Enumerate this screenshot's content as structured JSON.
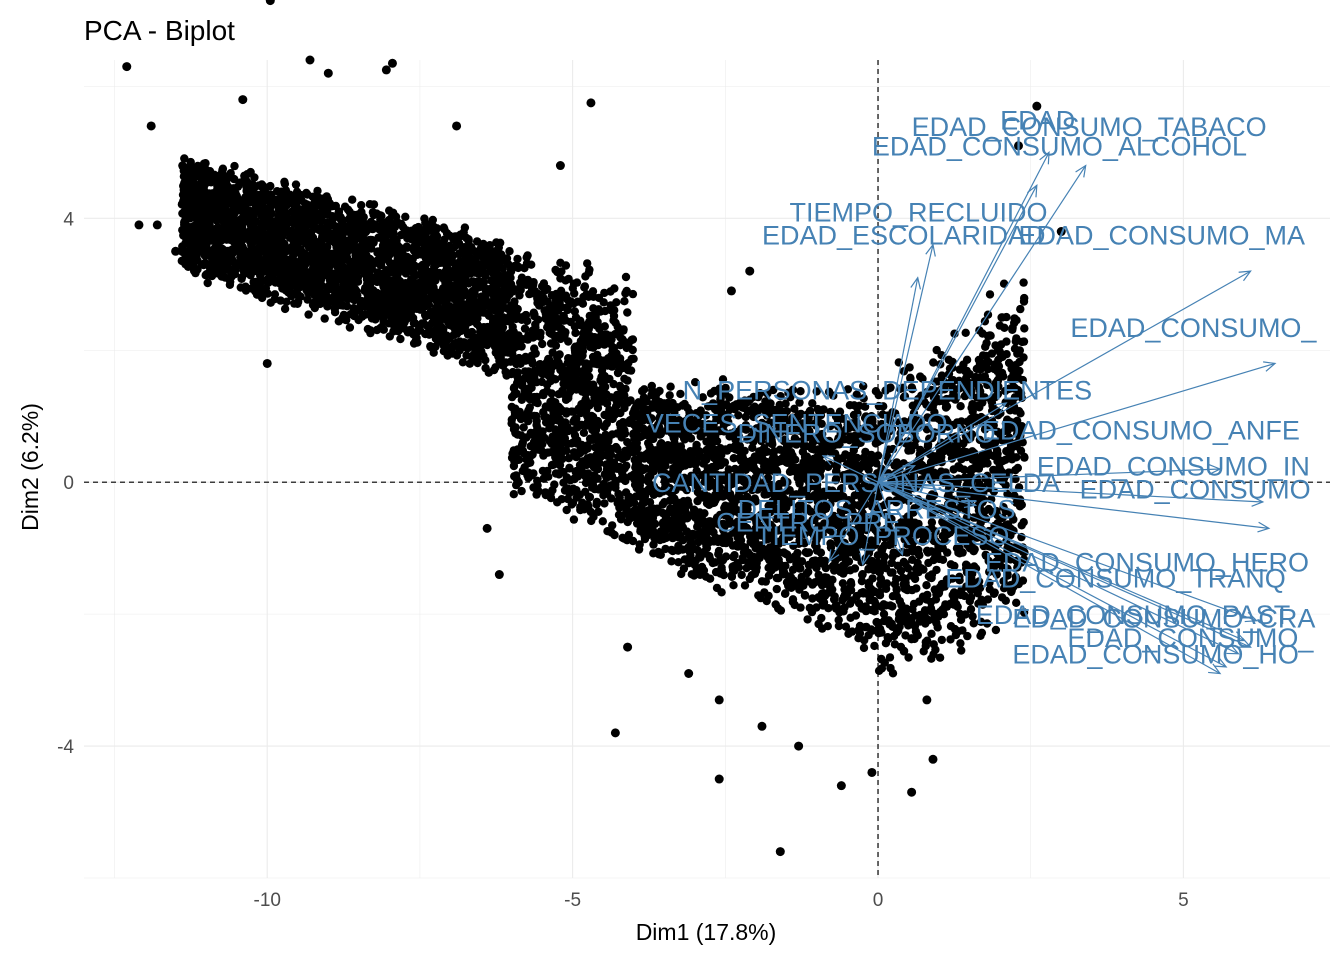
{
  "chart_data": {
    "type": "scatter",
    "title": "PCA - Biplot",
    "xlabel": "Dim1 (17.8%)",
    "ylabel": "Dim2 (6.2%)",
    "xlim": [
      -13,
      7.4
    ],
    "ylim": [
      -6,
      6.4
    ],
    "x_ticks": [
      -10,
      -5,
      0,
      5
    ],
    "y_ticks": [
      -4,
      0,
      4
    ],
    "x_tick_labels": [
      "-10",
      "-5",
      "0",
      "5"
    ],
    "y_tick_labels": [
      "-4",
      "0",
      "4"
    ],
    "grid": true,
    "reference_lines": [
      0,
      0
    ],
    "point_color": "#000000",
    "arrow_color": "#4682B4",
    "individuals": [
      {
        "x": -12.3,
        "y": 6.3
      },
      {
        "x": -9.95,
        "y": 7.3
      },
      {
        "x": -9.3,
        "y": 6.4
      },
      {
        "x": -8.05,
        "y": 6.25
      },
      {
        "x": -7.95,
        "y": 6.35
      },
      {
        "x": -11.9,
        "y": 5.4
      },
      {
        "x": -10.4,
        "y": 5.8
      },
      {
        "x": -9.0,
        "y": 6.2
      },
      {
        "x": -6.9,
        "y": 5.4
      },
      {
        "x": -4.7,
        "y": 5.75
      },
      {
        "x": -5.2,
        "y": 4.8
      },
      {
        "x": -11.8,
        "y": 3.9
      },
      {
        "x": -11.5,
        "y": 3.5
      },
      {
        "x": -12.1,
        "y": 3.9
      },
      {
        "x": -10.0,
        "y": 1.8
      },
      {
        "x": -6.2,
        "y": -1.4
      },
      {
        "x": -6.4,
        "y": -0.7
      },
      {
        "x": -4.1,
        "y": -2.5
      },
      {
        "x": -3.1,
        "y": -2.9
      },
      {
        "x": -2.6,
        "y": -3.3
      },
      {
        "x": -4.3,
        "y": -3.8
      },
      {
        "x": -2.6,
        "y": -4.5
      },
      {
        "x": -1.6,
        "y": -5.6
      },
      {
        "x": -0.6,
        "y": -4.6
      },
      {
        "x": -0.1,
        "y": -4.4
      },
      {
        "x": 0.55,
        "y": -4.7
      },
      {
        "x": -1.3,
        "y": -4.0
      },
      {
        "x": 0.9,
        "y": -4.2
      },
      {
        "x": 2.6,
        "y": 5.7
      },
      {
        "x": 2.3,
        "y": 5.1
      },
      {
        "x": 3.0,
        "y": 3.8
      },
      {
        "x": -2.1,
        "y": 3.2
      },
      {
        "x": -2.4,
        "y": 2.9
      },
      {
        "x": 0.8,
        "y": -3.3
      },
      {
        "x": -1.9,
        "y": -3.7
      }
    ],
    "variables": [
      {
        "name": "EDAD",
        "x": 2.8,
        "y": 5.0
      },
      {
        "name": "EDAD_CONSUMO_TABACO",
        "x": 3.4,
        "y": 4.8
      },
      {
        "name": "EDAD_CONSUMO_ALCOHOL",
        "x": 2.6,
        "y": 4.5
      },
      {
        "name": "TIEMPO_RECLUIDO",
        "x": 0.9,
        "y": 3.6
      },
      {
        "name": "EDAD_ESCOLARIDAD",
        "x": 0.65,
        "y": 3.1
      },
      {
        "name": "EDAD_CONSUMO_MA",
        "x": 6.1,
        "y": 3.2
      },
      {
        "name": "EDAD_CONSUMO_",
        "x": 6.5,
        "y": 1.8
      },
      {
        "name": "N_PERSONAS_DEPENDIENTES",
        "x": 2.1,
        "y": 1.2
      },
      {
        "name": "VECES_SENTENCIADO",
        "x": -0.9,
        "y": 0.4
      },
      {
        "name": "DINERO_SOBORNO",
        "x": 0.6,
        "y": 0.25
      },
      {
        "name": "EDAD_CONSUMO_ANFE",
        "x": 5.6,
        "y": 0.2
      },
      {
        "name": "EDAD_CONSUMO_IN",
        "x": 6.3,
        "y": -0.3
      },
      {
        "name": "EDAD_CONSUMO",
        "x": 6.4,
        "y": -0.7
      },
      {
        "name": "CANTIDAD_PERSONAS_CELDA",
        "x": 1.6,
        "y": -0.35
      },
      {
        "name": "DELITOS_ARRESTOS",
        "x": 0.4,
        "y": -1.1
      },
      {
        "name": "CENTRO_PRE",
        "x": -0.8,
        "y": -1.2
      },
      {
        "name": "TIEMPO_PROCESO",
        "x": -0.25,
        "y": -1.25
      },
      {
        "name": "EDAD_CONSUMO_HERO",
        "x": 6.2,
        "y": -2.1
      },
      {
        "name": "EDAD_CONSUMO_TRANQ",
        "x": 6.0,
        "y": -2.4
      },
      {
        "name": "EDAD_CONSUMO_PAST",
        "x": 5.9,
        "y": -2.6
      },
      {
        "name": "EDAD_CONSUMO_CRA",
        "x": 5.7,
        "y": -2.8
      },
      {
        "name": "EDAD_CONSUMO_",
        "x": 6.1,
        "y": -2.5
      },
      {
        "name": "EDAD_CONSUMO_HO",
        "x": 5.6,
        "y": -2.9
      }
    ],
    "variable_labels": [
      {
        "text": "EDAD",
        "x": 2.0,
        "y": 5.35
      },
      {
        "text": "EDAD_CONSUMO_TABACO",
        "x": 0.55,
        "y": 5.25
      },
      {
        "text": "EDAD_CONSUMO_ALCOHOL",
        "x": -0.1,
        "y": 4.95
      },
      {
        "text": "TIEMPO_RECLUIDO",
        "x": -1.45,
        "y": 3.95
      },
      {
        "text": "EDAD_ESCOLARIDAD",
        "x": -1.9,
        "y": 3.6
      },
      {
        "text": "EDAD_CONSUMO_MA",
        "x": 2.3,
        "y": 3.6
      },
      {
        "text": "EDAD_CONSUMO_",
        "x": 3.15,
        "y": 2.2
      },
      {
        "text": "N_PERSONAS_DEPENDIENTES",
        "x": -3.2,
        "y": 1.25
      },
      {
        "text": "VECES_SENTENCIADO",
        "x": -3.8,
        "y": 0.75
      },
      {
        "text": "DINERO_SOBORNO",
        "x": -2.3,
        "y": 0.6
      },
      {
        "text": "EDAD_CONSUMO_ANFE",
        "x": 1.7,
        "y": 0.65
      },
      {
        "text": "EDAD_CONSUMO_IN",
        "x": 2.6,
        "y": 0.1
      },
      {
        "text": "EDAD_CONSUMO",
        "x": 3.3,
        "y": -0.25
      },
      {
        "text": "CANTIDAD_PERSONAS_CELDA",
        "x": -3.7,
        "y": -0.15
      },
      {
        "text": "DELITOS_ARRESTOS",
        "x": -2.3,
        "y": -0.55
      },
      {
        "text": "CENTRO_PRE",
        "x": -2.65,
        "y": -0.75
      },
      {
        "text": "TIEMPO_PROCESO",
        "x": -2.0,
        "y": -0.95
      },
      {
        "text": "EDAD_CONSUMO_HERO",
        "x": 1.75,
        "y": -1.35
      },
      {
        "text": "EDAD_CONSUMO_TRANQ",
        "x": 1.1,
        "y": -1.6
      },
      {
        "text": "EDAD_CONSUMO_PAST",
        "x": 1.6,
        "y": -2.15
      },
      {
        "text": "EDAD_CONSUMO_CRA",
        "x": 2.2,
        "y": -2.2
      },
      {
        "text": "EDAD_CONSUMO_",
        "x": 3.1,
        "y": -2.5
      },
      {
        "text": "EDAD_CONSUMO_HO",
        "x": 2.2,
        "y": -2.75
      }
    ]
  }
}
